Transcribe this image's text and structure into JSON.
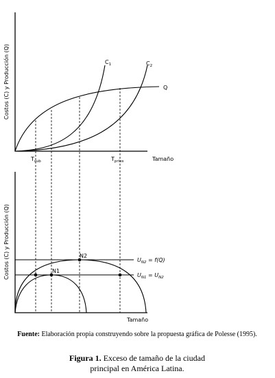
{
  "top_panel": {
    "y_label": "Costos (C) y Producción (Q)",
    "x_label": "Tamaño",
    "curves": [
      {
        "base": "C",
        "sub": "1"
      },
      {
        "base": "C",
        "sub": "2"
      },
      {
        "base": "Q"
      }
    ],
    "ticks": [
      {
        "base": "T",
        "sub": "sub"
      },
      {
        "base": "T",
        "sub": "pries"
      }
    ]
  },
  "bottom_panel": {
    "y_label": "Costos (C) y Producción (Q)",
    "x_label": "Tamaño",
    "points": [
      "N2",
      "N1"
    ],
    "lines": [
      {
        "base": "U",
        "sub": "N2",
        "rest": " = f(Q)"
      },
      {
        "base": "U",
        "sub": "N1",
        "rest": " = U",
        "sub2": "N2"
      }
    ]
  },
  "source": {
    "lead": "Fuente:",
    "text": " Elaboración propia construyendo sobre la propuesta gráfica de Polesse (1995)."
  },
  "caption": {
    "label": "Figura 1.",
    "line1": " Exceso de tamaño de la ciudad",
    "line2": "principal en América Latina."
  }
}
